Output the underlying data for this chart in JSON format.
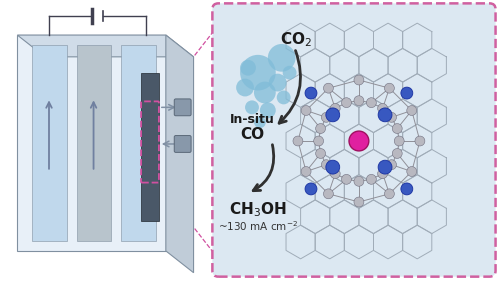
{
  "bg_color": "#ffffff",
  "box_bg": "#dce8f2",
  "box_border": "#d060a0",
  "arrow_color": "#303030",
  "bubble_color": "#80bcd8",
  "bubble_alpha": 0.75,
  "cell_front_color": "#e8f0f8",
  "cell_top_color": "#d0dce8",
  "cell_side_color": "#c0ccd8",
  "cell_panel_blue": "#c0d8ec",
  "cell_panel_gray": "#b8c4cc",
  "cell_edge": "#8090a0",
  "electrode_dark": "#4a5868",
  "pink_dashed": "#d050a0",
  "connector_gray": "#8090a4",
  "wire_color": "#404050",
  "arrow_gray": "#7080a0",
  "n_atom_color": "#3858c0",
  "c_atom_color": "#b8b8c0",
  "metal_color": "#e020a0",
  "graphene_color": "#a0acb8",
  "bond_color": "#909098"
}
